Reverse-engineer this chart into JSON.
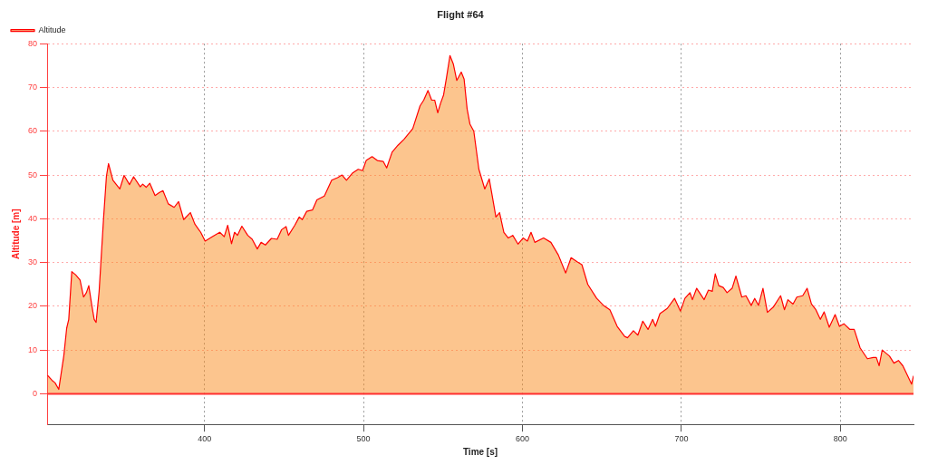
{
  "chart_data": {
    "type": "area",
    "title": "Flight #64",
    "xlabel": "Time [s]",
    "ylabel": "Altitude [m]",
    "xlim": [
      301,
      846
    ],
    "ylim": [
      -7,
      80
    ],
    "xticks": [
      400,
      500,
      600,
      700,
      800
    ],
    "yticks": [
      0,
      10,
      20,
      30,
      40,
      50,
      60,
      70,
      80
    ],
    "grid": true,
    "legend": "top left",
    "marker": "none",
    "line_style": "solid",
    "ref_lines": [
      {
        "axis": "y",
        "value": 0,
        "color": "#ff3030"
      }
    ],
    "series": [
      {
        "name": "Altitude",
        "color": "#ff0000",
        "x": [
          301.3,
          304,
          306,
          308.3,
          309.6,
          311.5,
          313.3,
          314.6,
          316.5,
          318.9,
          321.7,
          323.9,
          325.7,
          327.2,
          329.1,
          330.6,
          331.8,
          333.7,
          336.5,
          338.3,
          339.6,
          342.4,
          346.7,
          349.4,
          352.8,
          355.4,
          359.6,
          361.1,
          363.3,
          365.6,
          368.9,
          371.7,
          373.9,
          377.2,
          380.9,
          383.7,
          386.9,
          391.1,
          393.9,
          397.6,
          400.4,
          405,
          409.6,
          412.4,
          414.6,
          417,
          418.9,
          420.7,
          423.5,
          427.2,
          430,
          433.2,
          435.6,
          438.3,
          442.1,
          445.7,
          448.5,
          451.3,
          452.8,
          456.8,
          459.6,
          461.5,
          464.3,
          467.9,
          470.7,
          475.4,
          480,
          483.7,
          486.5,
          489.3,
          493,
          496.7,
          499.4,
          501.7,
          505.4,
          508.7,
          512.4,
          514.6,
          518,
          521.7,
          525.4,
          531,
          535.6,
          537.9,
          540.6,
          542.9,
          544.8,
          546.7,
          548.5,
          550.4,
          552.2,
          554.4,
          556.5,
          558.7,
          561.5,
          563.3,
          565.2,
          567,
          569.4,
          572.6,
          576.3,
          579.1,
          581,
          583.3,
          585.6,
          588.3,
          591.1,
          593.9,
          597.2,
          600.4,
          603.1,
          605.4,
          607.8,
          613.3,
          617.9,
          622.6,
          627.2,
          630.6,
          634.6,
          637.4,
          641.1,
          646.7,
          651,
          655,
          659.6,
          664.3,
          666.1,
          669.8,
          672.6,
          675.7,
          679,
          681.9,
          683.7,
          686.5,
          691.1,
          695.7,
          699.4,
          702.2,
          705.4,
          706.9,
          709.6,
          714.3,
          717,
          719.4,
          721.3,
          723.5,
          726.3,
          728.7,
          731.9,
          734.3,
          738,
          740.6,
          743.9,
          746.1,
          748.5,
          751.3,
          754.1,
          757.8,
          762.4,
          764.8,
          767,
          770.2,
          772.6,
          776.3,
          779.1,
          781.8,
          784.6,
          787.4,
          789.8,
          793,
          796.7,
          799.4,
          802.2,
          806,
          808.7,
          812.4,
          817,
          820.7,
          822.6,
          824.4,
          826.3,
          830.9,
          833.7,
          836.5,
          839.3,
          844.8,
          846
        ],
        "values": [
          4.2,
          3.1,
          2.5,
          1,
          4.1,
          8.7,
          15,
          17,
          27.9,
          27.2,
          26,
          22.1,
          23.1,
          24.7,
          20.2,
          17,
          16.3,
          23.4,
          40.1,
          49.7,
          52.6,
          48.8,
          46.8,
          49.9,
          47.8,
          49.6,
          47.3,
          47.9,
          47.2,
          48.1,
          45.3,
          46,
          46.4,
          43.4,
          42.6,
          43.9,
          39.8,
          41.4,
          38.8,
          36.9,
          34.9,
          35.9,
          36.9,
          35.9,
          38.5,
          34.3,
          36.9,
          36.2,
          38.3,
          36.2,
          35.3,
          33.1,
          34.6,
          34,
          35.5,
          35.3,
          37.5,
          38.2,
          36.2,
          38.5,
          40.4,
          39.8,
          41.7,
          42,
          44.3,
          45.2,
          48.8,
          49.4,
          50,
          48.8,
          50.4,
          51.3,
          51,
          53.3,
          54.2,
          53.3,
          53.1,
          51.6,
          55.2,
          56.8,
          58.1,
          60.6,
          65.8,
          67.1,
          69.3,
          67.1,
          67.1,
          64.2,
          66.4,
          68.3,
          72.2,
          77.3,
          75.4,
          71.6,
          73.5,
          71.9,
          65.1,
          61.6,
          60,
          51.3,
          46.8,
          49.1,
          45.2,
          40.4,
          41.4,
          36.9,
          35.6,
          36.2,
          34.2,
          35.6,
          34.9,
          36.9,
          34.6,
          35.6,
          34.6,
          31.7,
          27.6,
          31.1,
          30.1,
          29.5,
          25,
          21.8,
          20.2,
          19.2,
          15.4,
          13.1,
          12.8,
          14.4,
          13.4,
          16.6,
          14.7,
          17,
          15.4,
          18.3,
          19.5,
          21.8,
          18.9,
          21.8,
          23.1,
          21.5,
          24.1,
          21.5,
          23.7,
          23.4,
          27.4,
          24.7,
          24.3,
          23.1,
          24.1,
          26.9,
          22.1,
          22.4,
          20.2,
          21.8,
          20.2,
          24.1,
          18.6,
          19.8,
          22.4,
          19.2,
          21.5,
          20.5,
          22.1,
          22.4,
          24.1,
          20.5,
          19.2,
          17,
          18.7,
          15.2,
          18.1,
          15.4,
          16,
          14.7,
          14.7,
          10.5,
          8,
          8.3,
          8.3,
          6.4,
          10,
          8.6,
          7,
          7.6,
          6.4,
          2.2,
          4.1
        ]
      }
    ]
  }
}
